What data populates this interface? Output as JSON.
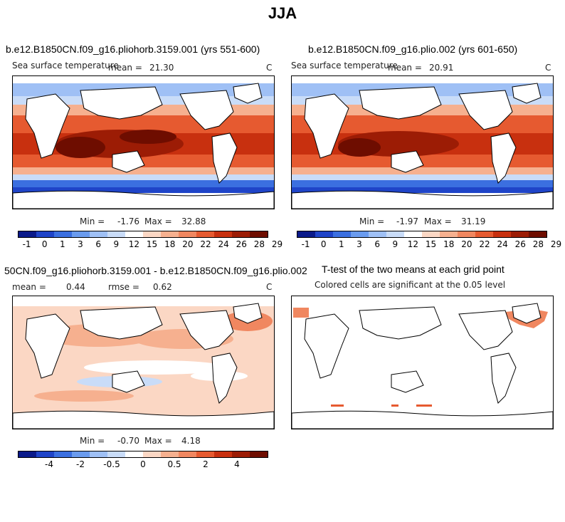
{
  "title": "JJA",
  "panels": {
    "p1": {
      "title": "b.e12.B1850CN.f09_g16.pliohorb.3159.001 (yrs 551-600)",
      "variable": "Sea surface temperature",
      "mean_label": "mean =",
      "mean": "21.30",
      "units": "C",
      "min_label": "Min =",
      "min": "-1.76",
      "max_label": "Max =",
      "max": "32.88"
    },
    "p2": {
      "title": "b.e12.B1850CN.f09_g16.plio.002 (yrs 601-650)",
      "variable": "Sea surface temperature",
      "mean_label": "mean =",
      "mean": "20.91",
      "units": "C",
      "min_label": "Min =",
      "min": "-1.97",
      "max_label": "Max =",
      "max": "31.19"
    },
    "p3": {
      "title": "50CN.f09_g16.pliohorb.3159.001 - b.e12.B1850CN.f09_g16.plio.002",
      "mean_label": "mean =",
      "mean": "0.44",
      "rmse_label": "rmse =",
      "rmse": "0.62",
      "units": "C",
      "min_label": "Min =",
      "min": "-0.70",
      "max_label": "Max =",
      "max": "4.18"
    },
    "p4": {
      "title": "T-test of the two means at each grid point",
      "subtitle": "Colored cells are significant at the 0.05 level"
    }
  },
  "colorbars": {
    "abs": {
      "colors": [
        "#0a1a8a",
        "#1f44c8",
        "#3b6fe0",
        "#6a9bee",
        "#9fc0f5",
        "#c9dcf8",
        "#ffffff",
        "#fbd7c4",
        "#f6b08f",
        "#f08760",
        "#e65a30",
        "#c8300f",
        "#9c1c05",
        "#6e0d00"
      ],
      "labels": [
        "-1",
        "0",
        "1",
        "3",
        "6",
        "9",
        "12",
        "15",
        "18",
        "20",
        "22",
        "24",
        "26",
        "28",
        "29"
      ]
    },
    "diff": {
      "colors": [
        "#0a1a8a",
        "#1f44c8",
        "#3b6fe0",
        "#6a9bee",
        "#9fc0f5",
        "#c9dcf8",
        "#ffffff",
        "#fbd7c4",
        "#f6b08f",
        "#f08760",
        "#e65a30",
        "#c8300f",
        "#9c1c05",
        "#6e0d00"
      ],
      "labels": [
        "-4",
        "-2",
        "-0.5",
        "0",
        "0.5",
        "2",
        "4"
      ]
    }
  }
}
